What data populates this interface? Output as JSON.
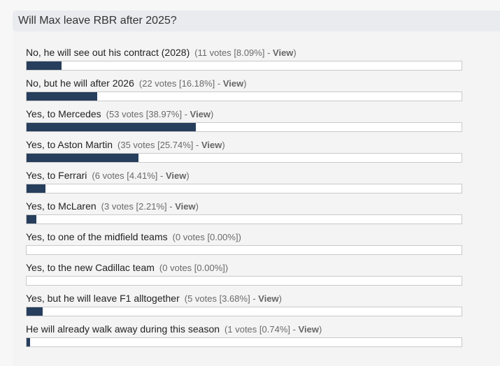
{
  "poll": {
    "title": "Will Max leave RBR after 2025?",
    "view_label": "View",
    "bar_color": "#273e5c",
    "options": [
      {
        "label": "No, he will see out his contract (2028)",
        "votes_text": "11 votes [8.09%]",
        "percent": 8.09,
        "has_view": true
      },
      {
        "label": "No, but he will after 2026",
        "votes_text": "22 votes [16.18%]",
        "percent": 16.18,
        "has_view": true
      },
      {
        "label": "Yes, to Mercedes",
        "votes_text": "53 votes [38.97%]",
        "percent": 38.97,
        "has_view": true
      },
      {
        "label": "Yes, to Aston Martin",
        "votes_text": "35 votes [25.74%]",
        "percent": 25.74,
        "has_view": true
      },
      {
        "label": "Yes, to Ferrari",
        "votes_text": "6 votes [4.41%]",
        "percent": 4.41,
        "has_view": true
      },
      {
        "label": "Yes, to McLaren",
        "votes_text": "3 votes [2.21%]",
        "percent": 2.21,
        "has_view": true
      },
      {
        "label": "Yes, to one of the midfield teams",
        "votes_text": "0 votes [0.00%]",
        "percent": 0,
        "has_view": false
      },
      {
        "label": "Yes, to the new Cadillac team",
        "votes_text": "0 votes [0.00%]",
        "percent": 0,
        "has_view": false
      },
      {
        "label": "Yes, but he will leave F1 alltogether",
        "votes_text": "5 votes [3.68%]",
        "percent": 3.68,
        "has_view": true
      },
      {
        "label": "He will already walk away during this season",
        "votes_text": "1 votes [0.74%]",
        "percent": 0.74,
        "has_view": true
      }
    ]
  }
}
